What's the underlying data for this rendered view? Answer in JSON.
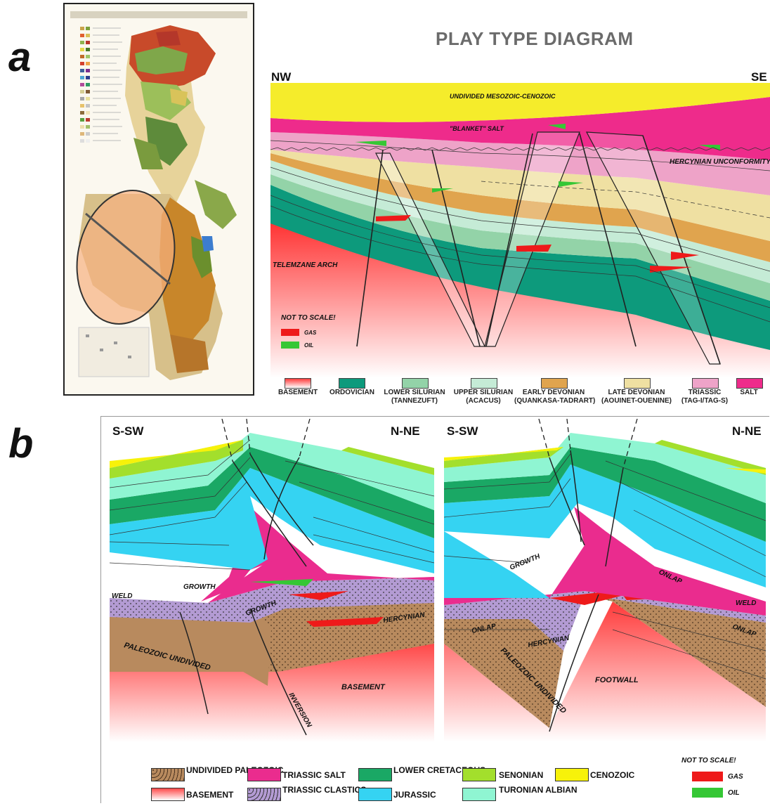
{
  "panel_labels": {
    "a": "a",
    "b": "b"
  },
  "play_type": {
    "title": "PLAY TYPE DIAGRAM",
    "left_dir": "NW",
    "right_dir": "SE",
    "labels": {
      "mesozoic": "UNDIVIDED MESOZOIC-CENOZOIC",
      "salt": "\"BLANKET\" SALT",
      "hercynian": "HERCYNIAN UNCONFORMITY",
      "telemzane": "TELEMZANE ARCH",
      "not_to_scale": "NOT TO SCALE!",
      "gas": "GAS",
      "oil": "OIL"
    },
    "legend": [
      {
        "line1": "BASEMENT",
        "line2": "",
        "color": "#ff3b3b"
      },
      {
        "line1": "ORDOVICIAN",
        "line2": "",
        "color": "#0d9a7c"
      },
      {
        "line1": "LOWER SILURIAN",
        "line2": "(TANNEZUFT)",
        "color": "#93d3a8"
      },
      {
        "line1": "UPPER SILURIAN",
        "line2": "(ACACUS)",
        "color": "#c5ebd6"
      },
      {
        "line1": "EARLY DEVONIAN",
        "line2": "(QUANKASA-TADRART)",
        "color": "#e0a44e"
      },
      {
        "line1": "LATE DEVONIAN",
        "line2": "(AOUINET-OUENINE)",
        "color": "#efe0a2"
      },
      {
        "line1": "TRIASSIC",
        "line2": "(TAG-I/TAG-S)",
        "color": "#eea3c8"
      },
      {
        "line1": "SALT",
        "line2": "",
        "color": "#ee2b8b"
      }
    ]
  },
  "sections_b": {
    "left_sw": "S-SW",
    "left_ne": "N-NE",
    "right_sw": "S-SW",
    "right_ne": "N-NE",
    "labels_left": {
      "weld": "WELD",
      "growth1": "GROWTH",
      "growth2": "GROWTH",
      "hercynian": "HERCYNIAN",
      "paleozoic": "PALEOZOIC UNDIVIDED",
      "basement": "BASEMENT",
      "inversion": "INVERSION"
    },
    "labels_right": {
      "growth": "GROWTH",
      "onlap1": "ONLAP",
      "onlap2": "ONLAP",
      "onlap3": "ONLAP",
      "weld": "WELD",
      "hercynian": "HERCYNIAN",
      "paleozoic": "PALEOZOIC UNDIVIDED",
      "footwall": "FOOTWALL"
    },
    "legend": [
      {
        "label": "UNDIVIDED PALEOZOIC",
        "color": "#b88a5e"
      },
      {
        "label": "BASEMENT",
        "color": "#ff4a4a"
      },
      {
        "label": "TRIASSIC SALT",
        "color": "#ea2c8e"
      },
      {
        "label": "TRIASSIC CLASTICS",
        "color": "#b39bd3"
      },
      {
        "label": "LOWER CRETACEOUS",
        "color": "#1aa865"
      },
      {
        "label": "JURASSIC",
        "color": "#35d3f2"
      },
      {
        "label": "SENONIAN",
        "color": "#a3df2c"
      },
      {
        "label": "TURONIAN ALBIAN",
        "color": "#8ff5d2"
      },
      {
        "label": "CENOZOIC",
        "color": "#f7f20a"
      }
    ],
    "not_to_scale": "NOT TO SCALE!",
    "gas": "GAS",
    "oil": "OIL"
  }
}
